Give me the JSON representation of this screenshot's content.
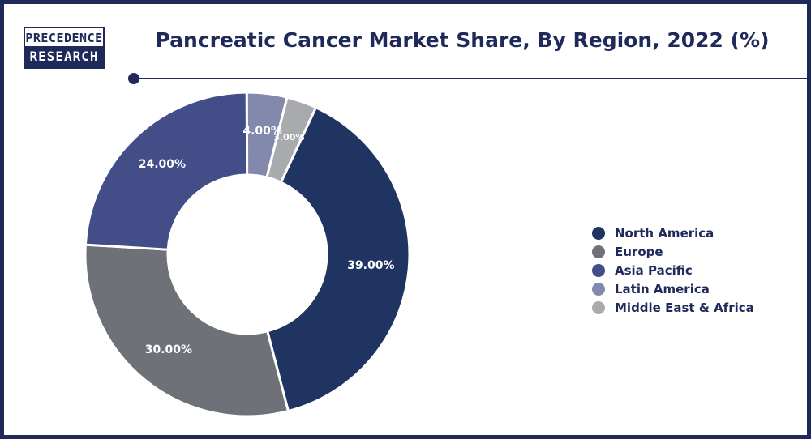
{
  "brand": {
    "line1": "PRECEDENCE",
    "line2": "RESEARCH"
  },
  "chart_data": {
    "type": "pie",
    "title": "Pancreatic Cancer Market Share, By Region, 2022 (%)",
    "donut": true,
    "categories": [
      "North America",
      "Europe",
      "Asia Pacific",
      "Latin America",
      "Middle East & Africa"
    ],
    "values": [
      39,
      30,
      24,
      4,
      3
    ],
    "data_labels": [
      "39.00%",
      "30.00%",
      "24.00%",
      "4.00%",
      "3.00%"
    ],
    "colors": [
      "#1f3461",
      "#6e7177",
      "#434d88",
      "#8289ad",
      "#a9aaae"
    ],
    "legend_position": "right"
  }
}
